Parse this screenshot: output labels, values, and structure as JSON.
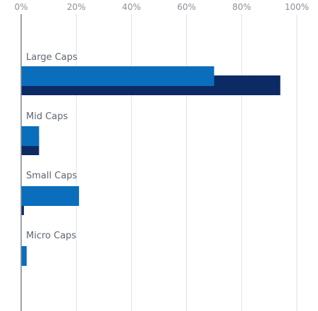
{
  "chart_data": {
    "type": "bar",
    "orientation": "horizontal",
    "categories": [
      "Large Caps",
      "Mid Caps",
      "Small Caps",
      "Micro Caps"
    ],
    "series": [
      {
        "values": [
          70,
          6.5,
          21,
          2
        ],
        "color": "#0a6ebd"
      },
      {
        "values": [
          94,
          6.5,
          1,
          0
        ],
        "color": "#0c2a63"
      }
    ],
    "xlim": [
      0,
      100
    ],
    "x_ticks": [
      0,
      20,
      40,
      60,
      80,
      100
    ],
    "x_tick_labels": [
      "0%",
      "20%",
      "40%",
      "60%",
      "80%",
      "100%"
    ],
    "tick_position": "top",
    "grid": true,
    "colors": {
      "grid": "#d9e3ea",
      "axis": "#7b838c"
    }
  }
}
